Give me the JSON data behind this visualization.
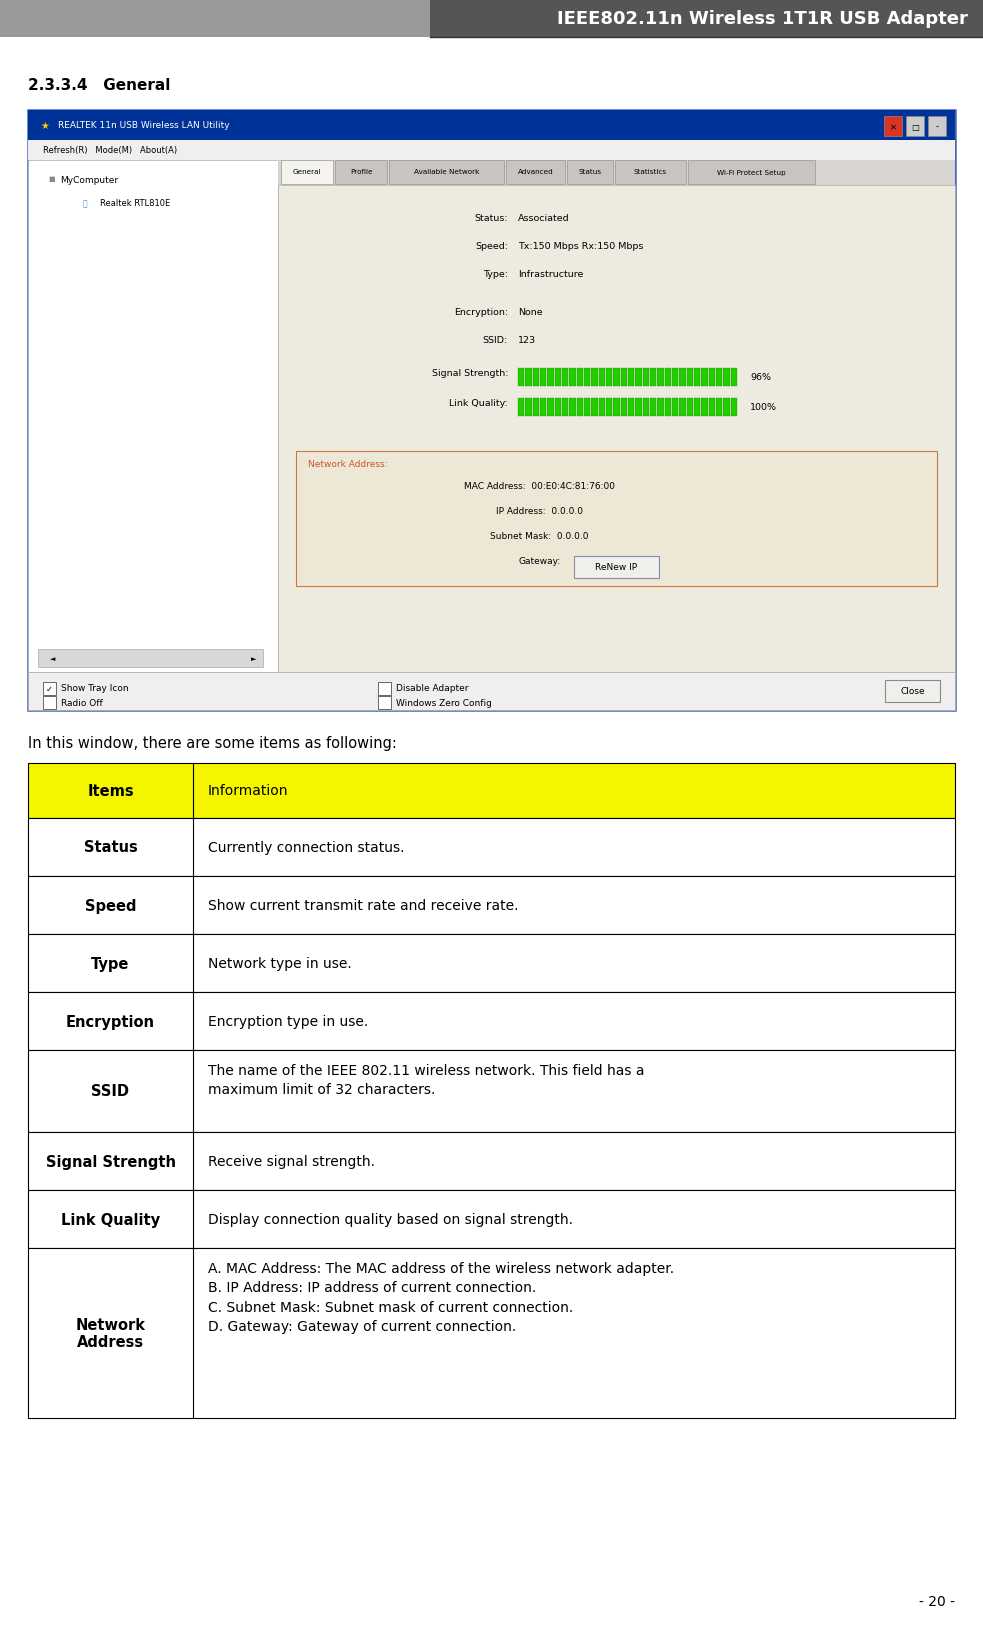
{
  "title": "IEEE802.11n Wireless 1T1R USB Adapter",
  "section_heading": "2.3.3.4   General",
  "intro_text": "In this window, there are some items as following:",
  "table_header_bg": "#f5f500",
  "table_border_color": "#000000",
  "table_header_left": "Items",
  "table_header_right": "Information",
  "table_rows": [
    {
      "left": "Status",
      "right": "Currently connection status.",
      "multiline": false
    },
    {
      "left": "Speed",
      "right": "Show current transmit rate and receive rate.",
      "multiline": false
    },
    {
      "left": "Type",
      "right": "Network type in use.",
      "multiline": false
    },
    {
      "left": "Encryption",
      "right": "Encryption type in use.",
      "multiline": false
    },
    {
      "left": "SSID",
      "right": "The name of the IEEE 802.11 wireless network. This field has a\nmaximum limit of 32 characters.",
      "multiline": true
    },
    {
      "left": "Signal Strength",
      "right": "Receive signal strength.",
      "multiline": false
    },
    {
      "left": "Link Quality",
      "right": "Display connection quality based on signal strength.",
      "multiline": false
    },
    {
      "left": "Network\nAddress",
      "right": "A. MAC Address: The MAC address of the wireless network adapter.\nB. IP Address: IP address of current connection.\nC. Subnet Mask: Subnet mask of current connection.\nD. Gateway: Gateway of current connection.",
      "multiline": true
    }
  ],
  "page_number": "- 20 -",
  "fig_width": 9.83,
  "fig_height": 16.31,
  "dpi": 100,
  "header_bg_left": "#999999",
  "header_bg_right": "#555555",
  "title_color": "#ffffff",
  "title_fontsize": 13,
  "screenshot_title_bar_color": "#003087",
  "screenshot_bg": "#f5f3ee",
  "screenshot_content_bg": "#edeae0",
  "bar_green": "#33cc00",
  "network_box_bg": "#ede8d5",
  "network_box_border": "#cc5533"
}
